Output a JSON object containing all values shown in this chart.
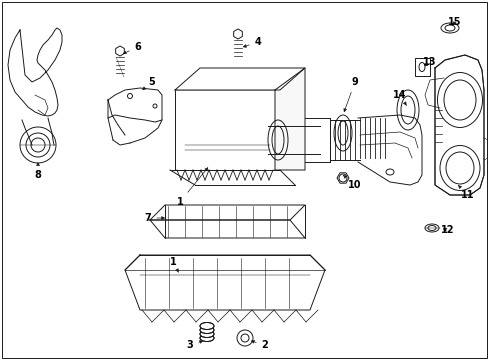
{
  "background_color": "#ffffff",
  "border_color": "#000000",
  "line_color": "#1a1a1a",
  "text_color": "#000000",
  "fig_width": 4.89,
  "fig_height": 3.6,
  "dpi": 100
}
